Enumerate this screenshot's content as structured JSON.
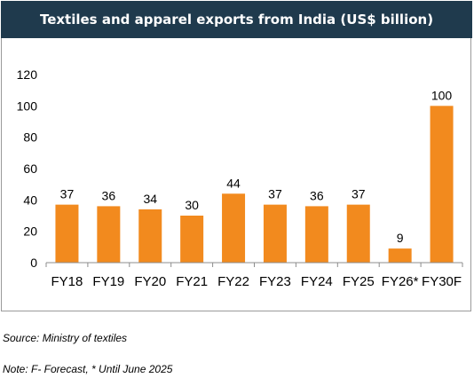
{
  "title": "Textiles and apparel exports from India (US$ billion)",
  "chart_data": {
    "type": "bar",
    "categories": [
      "FY18",
      "FY19",
      "FY20",
      "FY21",
      "FY22",
      "FY23",
      "FY24",
      "FY25",
      "FY26*",
      "FY30F"
    ],
    "values": [
      37,
      36,
      34,
      30,
      44,
      37,
      36,
      37,
      9,
      100
    ],
    "ylim": [
      0,
      120
    ],
    "yticks": [
      0,
      20,
      40,
      60,
      80,
      100,
      120
    ],
    "bar_color": "#f28a1e",
    "grid": false,
    "data_labels": true
  },
  "source": "Source: Ministry of textiles",
  "note": "Note: F- Forecast, * Until June 2025"
}
